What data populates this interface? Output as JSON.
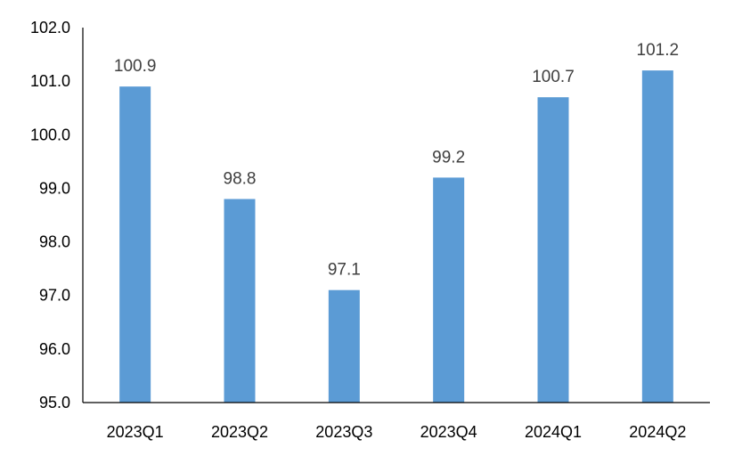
{
  "chart_data": {
    "type": "bar",
    "categories": [
      "2023Q1",
      "2023Q2",
      "2023Q3",
      "2023Q4",
      "2024Q1",
      "2024Q2"
    ],
    "values": [
      100.9,
      98.8,
      97.1,
      99.2,
      100.7,
      101.2
    ],
    "data_labels": [
      "100.9",
      "98.8",
      "97.1",
      "99.2",
      "100.7",
      "101.2"
    ],
    "ylim": [
      95.0,
      102.0
    ],
    "yticks": [
      "95.0",
      "96.0",
      "97.0",
      "98.0",
      "99.0",
      "100.0",
      "101.0",
      "102.0"
    ],
    "title": "",
    "xlabel": "",
    "ylabel": "",
    "grid": false,
    "legend": "none",
    "bar_color": "#5B9BD5"
  }
}
